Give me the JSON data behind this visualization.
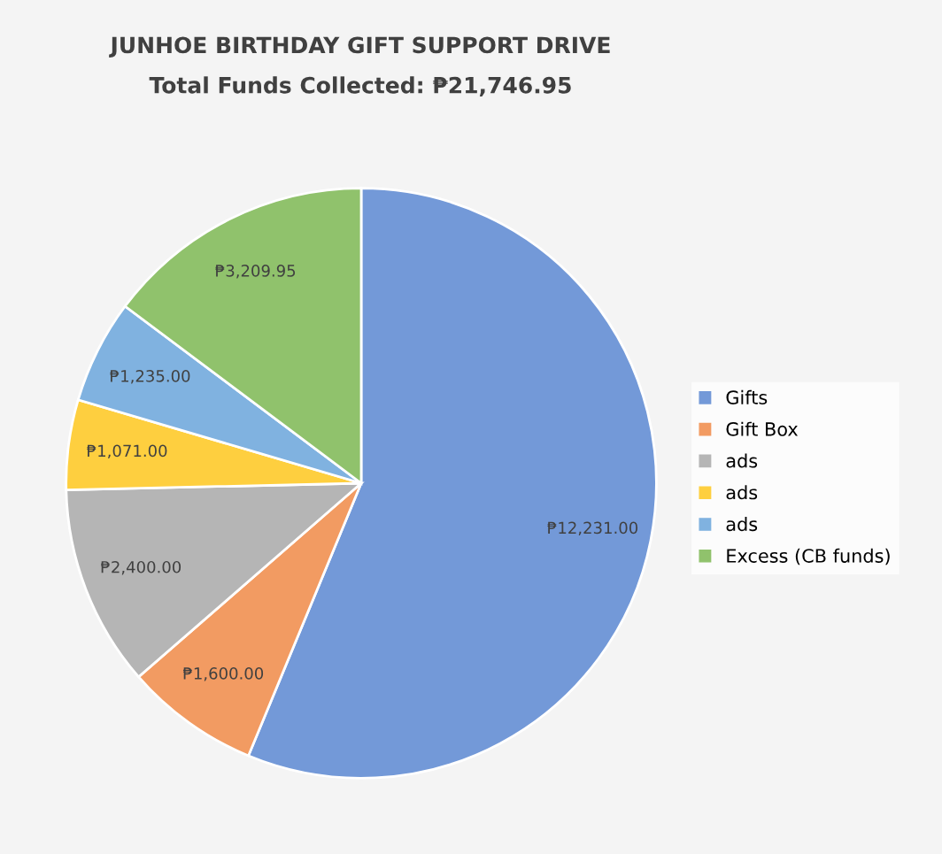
{
  "chart_data": {
    "type": "pie",
    "title": "JUNHOE BIRTHDAY GIFT SUPPORT DRIVE",
    "subtitle": "Total Funds Collected: ₱21,746.95",
    "categories": [
      "Gifts",
      "Gift Box",
      "ads",
      "ads",
      "ads",
      "Excess (CB funds)"
    ],
    "values": [
      12231.0,
      1600.0,
      2400.0,
      1071.0,
      1235.0,
      3209.95
    ],
    "value_labels": [
      "₱12,231.00",
      "₱1,600.00",
      "₱2,400.00",
      "₱1,071.00",
      "₱1,235.00",
      "₱3,209.95"
    ],
    "colors": [
      "#7399d8",
      "#f29b62",
      "#b5b5b5",
      "#fecf3f",
      "#80b2e0",
      "#90c26c"
    ],
    "legend": "right"
  }
}
